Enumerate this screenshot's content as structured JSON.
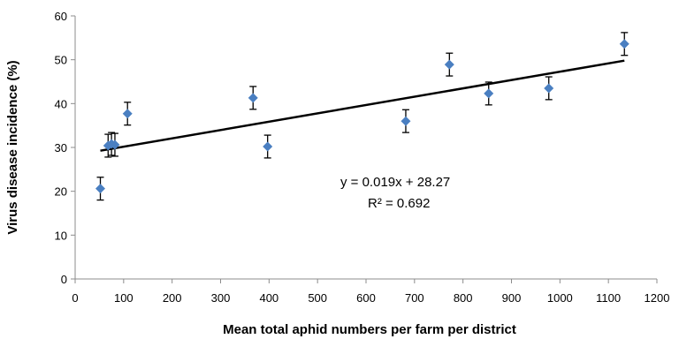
{
  "chart_data": {
    "type": "scatter",
    "title": "",
    "xlabel": "Mean total aphid numbers per farm per district",
    "ylabel": "Virus disease incidence (%)",
    "xlim": [
      0,
      1200
    ],
    "ylim": [
      0,
      60
    ],
    "x_ticks": [
      0,
      100,
      200,
      300,
      400,
      500,
      600,
      700,
      800,
      900,
      1000,
      1100,
      1200
    ],
    "y_ticks": [
      0,
      10,
      20,
      30,
      40,
      50,
      60
    ],
    "grid": false,
    "legend": "none",
    "marker_color": "#4a7fc1",
    "points": [
      {
        "x": 52,
        "y": 20.6,
        "err": 2.6
      },
      {
        "x": 68,
        "y": 30.4,
        "err": 2.6
      },
      {
        "x": 75,
        "y": 30.8,
        "err": 2.6
      },
      {
        "x": 82,
        "y": 30.6,
        "err": 2.6
      },
      {
        "x": 108,
        "y": 37.7,
        "err": 2.6
      },
      {
        "x": 367,
        "y": 41.3,
        "err": 2.6
      },
      {
        "x": 397,
        "y": 30.2,
        "err": 2.6
      },
      {
        "x": 682,
        "y": 36.0,
        "err": 2.6
      },
      {
        "x": 772,
        "y": 48.9,
        "err": 2.6
      },
      {
        "x": 853,
        "y": 42.3,
        "err": 2.6
      },
      {
        "x": 977,
        "y": 43.5,
        "err": 2.6
      },
      {
        "x": 1133,
        "y": 53.6,
        "err": 2.6
      }
    ],
    "trendline": {
      "slope": 0.019,
      "intercept": 28.27,
      "x_range": [
        52,
        1133
      ]
    },
    "annotations": {
      "equation": "y = 0.019x + 28.27",
      "r_squared": "R² = 0.692"
    }
  }
}
